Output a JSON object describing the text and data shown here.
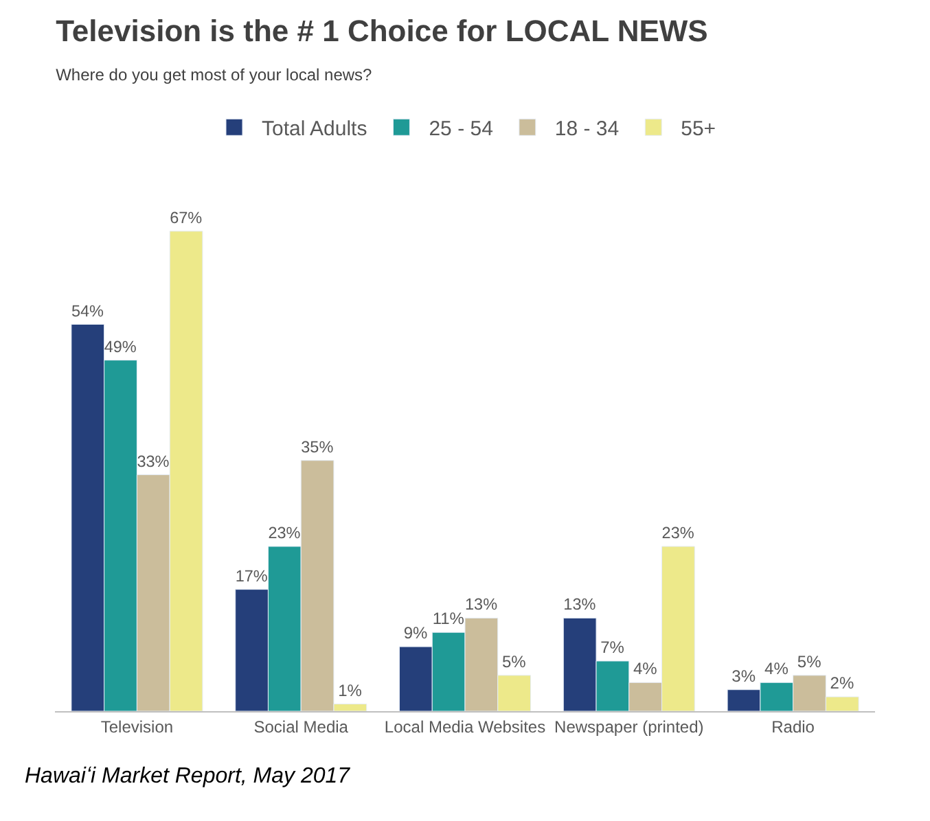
{
  "chart_data": {
    "type": "bar",
    "title": "Television is the # 1 Choice for LOCAL NEWS",
    "subtitle": "Where do you get most of your local news?",
    "categories": [
      "Television",
      "Social Media",
      "Local Media Websites",
      "Newspaper (printed)",
      "Radio"
    ],
    "series": [
      {
        "name": "Total Adults",
        "color": "#253f7a",
        "values": [
          54,
          17,
          9,
          13,
          3
        ],
        "value_labels": [
          "54%",
          "17%",
          "9%",
          "13%",
          "3%"
        ]
      },
      {
        "name": "25 - 54",
        "color": "#1f9a96",
        "values": [
          49,
          23,
          11,
          7,
          4
        ],
        "value_labels": [
          "49%",
          "23%",
          "11%",
          "7%",
          "4%"
        ]
      },
      {
        "name": "18 - 34",
        "color": "#cbbd9b",
        "values": [
          33,
          35,
          13,
          4,
          5
        ],
        "value_labels": [
          "33%",
          "35%",
          "13%",
          "4%",
          "5%"
        ]
      },
      {
        "name": "55+",
        "color": "#ede98a",
        "values": [
          67,
          1,
          5,
          23,
          2
        ],
        "value_labels": [
          "67%",
          "1%",
          "5%",
          "23%",
          "2%"
        ]
      }
    ],
    "tick_labels": "x",
    "legend": "top",
    "annotations": [
      "Hawaiʻi Market Report, May 2017"
    ]
  }
}
